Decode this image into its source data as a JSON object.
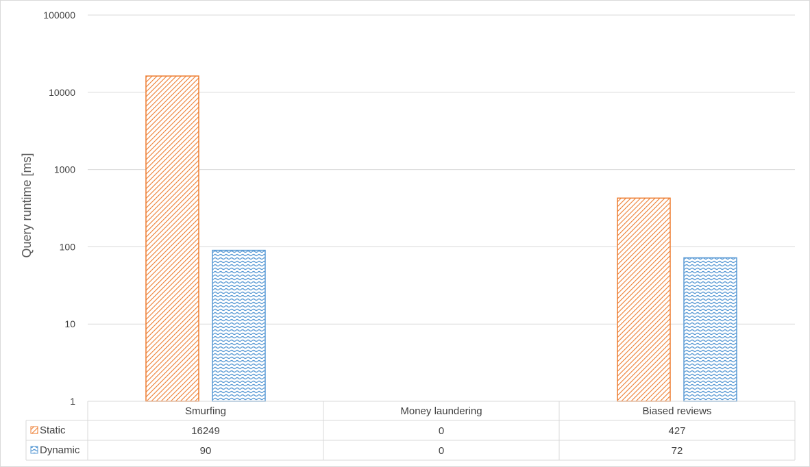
{
  "chart_data": {
    "type": "bar",
    "ylabel": "Query runtime [ms]",
    "yscale": "log",
    "ylim": [
      1,
      100000
    ],
    "yticks": [
      "1",
      "10",
      "100",
      "1000",
      "10000",
      "100000"
    ],
    "categories": [
      "Smurfing",
      "Money laundering",
      "Biased reviews"
    ],
    "series": [
      {
        "name": "Static",
        "values": [
          16249,
          0,
          427
        ],
        "value_labels": [
          "16249",
          "0",
          "427"
        ],
        "color": "#ed7d31",
        "pattern": "diagonal-hatch"
      },
      {
        "name": "Dynamic",
        "values": [
          90,
          0,
          72
        ],
        "value_labels": [
          "90",
          "0",
          "72"
        ],
        "color": "#5b9bd5",
        "pattern": "wave"
      }
    ],
    "grid": true,
    "legend": "data-table"
  }
}
